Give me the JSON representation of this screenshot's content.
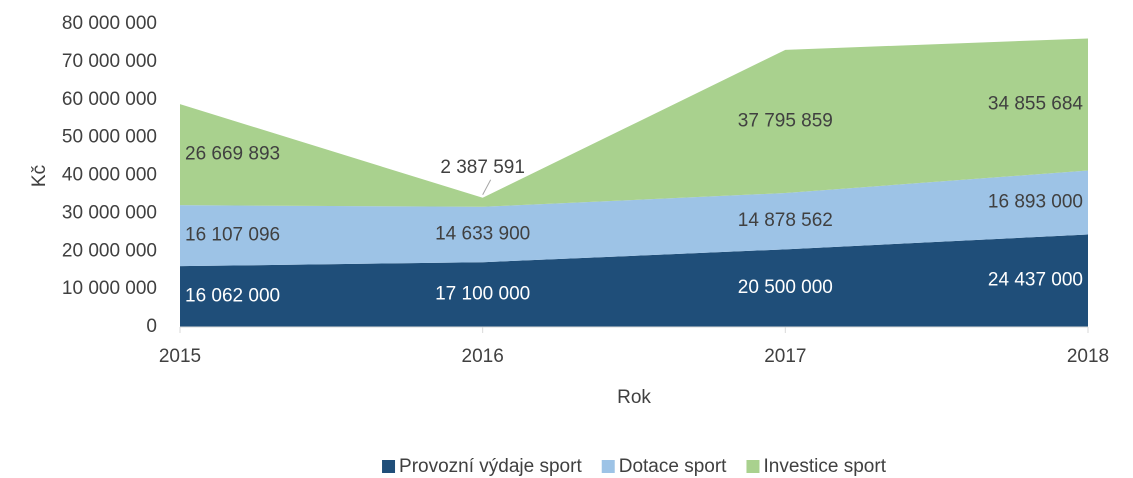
{
  "chart_data": {
    "type": "stacked_area",
    "categories": [
      "2015",
      "2016",
      "2017",
      "2018"
    ],
    "series": [
      {
        "name": "Provozní výdaje sport",
        "color": "#1f4e79",
        "values": [
          16062000,
          17100000,
          20500000,
          24437000
        ],
        "value_labels": [
          "16 062 000",
          "17 100 000",
          "20 500 000",
          "24 437 000"
        ]
      },
      {
        "name": "Dotace sport",
        "color": "#9dc3e6",
        "values": [
          16107096,
          14633900,
          14878562,
          16893000
        ],
        "value_labels": [
          "16 107 096",
          "14 633 900",
          "14 878 562",
          "16 893 000"
        ]
      },
      {
        "name": "Investice sport",
        "color": "#a9d18e",
        "values": [
          26669893,
          2387591,
          37795859,
          34855684
        ],
        "value_labels": [
          "26 669 893",
          "2 387 591",
          "37 795 859",
          "34 855 684"
        ]
      }
    ],
    "ylim": [
      0,
      80000000
    ],
    "yticks": [
      0,
      {
        "value": 10000000,
        "label": "10 000 000"
      },
      {
        "value": 20000000,
        "label": "20 000 000"
      },
      {
        "value": 30000000,
        "label": "30 000 000"
      },
      {
        "value": 40000000,
        "label": "40 000 000"
      },
      {
        "value": 50000000,
        "label": "50 000 000"
      },
      {
        "value": 60000000,
        "label": "60 000 000"
      },
      {
        "value": 70000000,
        "label": "70 000 000"
      },
      {
        "value": 80000000,
        "label": "80 000 000"
      }
    ],
    "y_label": "Kč",
    "x_label": "Rok",
    "legend": "bottom"
  }
}
